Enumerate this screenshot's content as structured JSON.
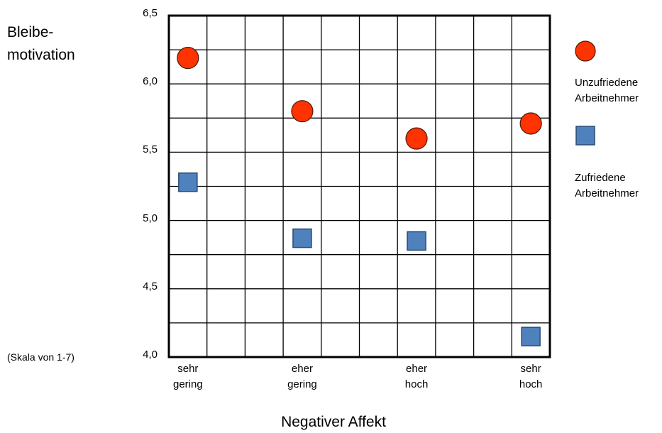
{
  "chart_data": {
    "type": "scatter",
    "ylabel_lines": [
      "Bleibe-",
      "motivation"
    ],
    "ylabel_note": "(Skala von 1-7)",
    "xlabel": "Negativer Affekt",
    "categories": [
      [
        "sehr",
        "gering"
      ],
      [
        "eher",
        "gering"
      ],
      [
        "eher",
        "hoch"
      ],
      [
        "sehr",
        "hoch"
      ]
    ],
    "ylim": [
      4.0,
      6.5
    ],
    "yticks": [
      "4,0",
      "4,5",
      "5,0",
      "5,5",
      "6,0",
      "6,5"
    ],
    "ytick_values": [
      4.0,
      4.5,
      5.0,
      5.5,
      6.0,
      6.5
    ],
    "grid": true,
    "series": [
      {
        "name_lines": [
          "Unzufriedene",
          "Arbeitnehmer"
        ],
        "marker": "circle",
        "color": "#ff3300",
        "values": [
          6.19,
          5.8,
          5.6,
          5.71
        ]
      },
      {
        "name_lines": [
          "Zufriedene",
          "Arbeitnehmer"
        ],
        "marker": "square",
        "color": "#4f81bd",
        "values": [
          5.28,
          4.87,
          4.85,
          4.15
        ]
      }
    ],
    "legend_position": "right"
  }
}
